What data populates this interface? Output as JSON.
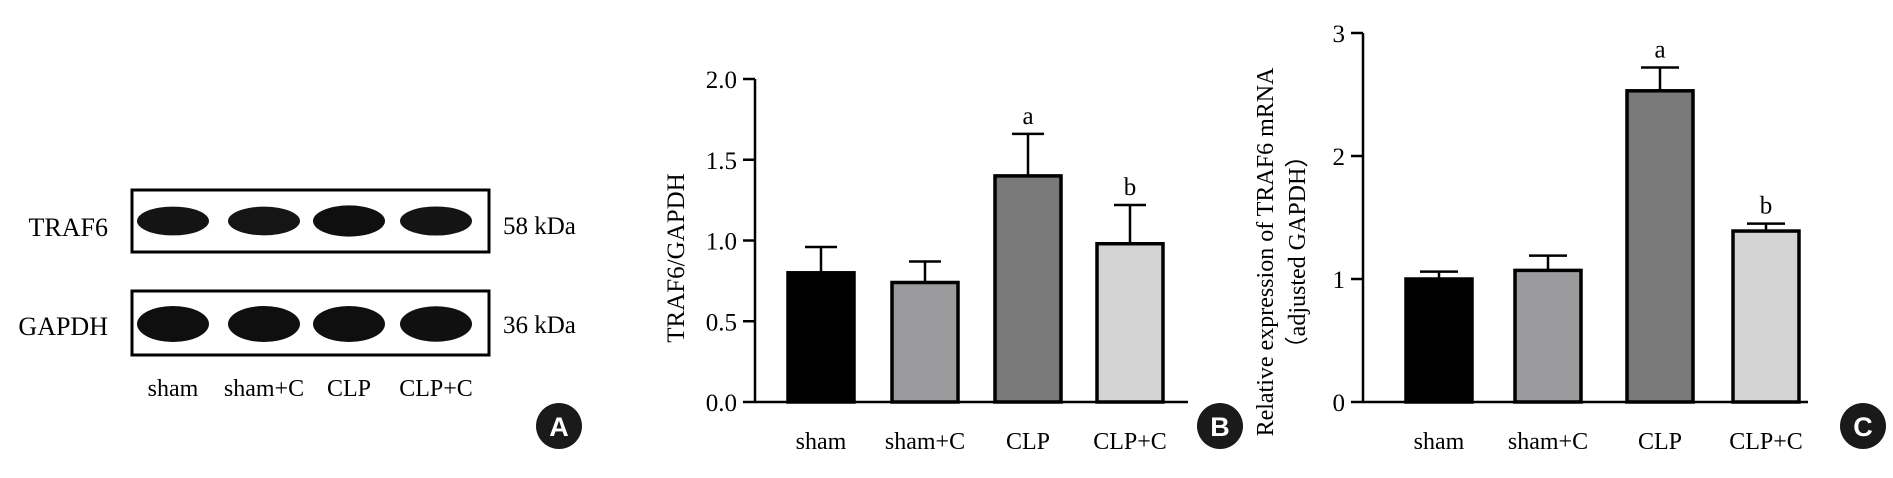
{
  "panel_a": {
    "bands": [
      {
        "label": "TRAF6",
        "kda": "58 kDa",
        "intensity": [
          0.8,
          0.78,
          1.0,
          0.82
        ]
      },
      {
        "label": "GAPDH",
        "kda": "36 kDa",
        "intensity": [
          1.0,
          1.0,
          1.0,
          0.96
        ]
      }
    ],
    "lanes": [
      "sham",
      "sham+C",
      "CLP",
      "CLP+C"
    ],
    "badge": "A"
  },
  "chart_data": [
    {
      "type": "bar",
      "categories": [
        "sham",
        "sham+C",
        "CLP",
        "CLP+C"
      ],
      "values": [
        0.8,
        0.74,
        1.4,
        0.98
      ],
      "errors": [
        0.16,
        0.13,
        0.26,
        0.24
      ],
      "colors": [
        "#000000",
        "#9b9b9e",
        "#7a7a7a",
        "#d4d4d4"
      ],
      "annotations": [
        "",
        "",
        "a",
        "b"
      ],
      "ylabel": "TRAF6/GAPDH",
      "ylabel2": "",
      "ylim": [
        0,
        2.0
      ],
      "yticks": [
        "0.0",
        "0.5",
        "1.0",
        "1.5",
        "2.0"
      ],
      "badge": "B"
    },
    {
      "type": "bar",
      "categories": [
        "sham",
        "sham+C",
        "CLP",
        "CLP+C"
      ],
      "values": [
        1.0,
        1.07,
        2.53,
        1.39
      ],
      "errors": [
        0.06,
        0.12,
        0.19,
        0.06
      ],
      "colors": [
        "#000000",
        "#9b9b9e",
        "#7a7a7a",
        "#d4d4d4"
      ],
      "annotations": [
        "",
        "",
        "a",
        "b"
      ],
      "ylabel": "Relative expression of TRAF6 mRNA",
      "ylabel2": "（adjusted GAPDH）",
      "ylim": [
        0,
        3
      ],
      "yticks": [
        "0",
        "1",
        "2",
        "3"
      ],
      "badge": "C"
    }
  ]
}
